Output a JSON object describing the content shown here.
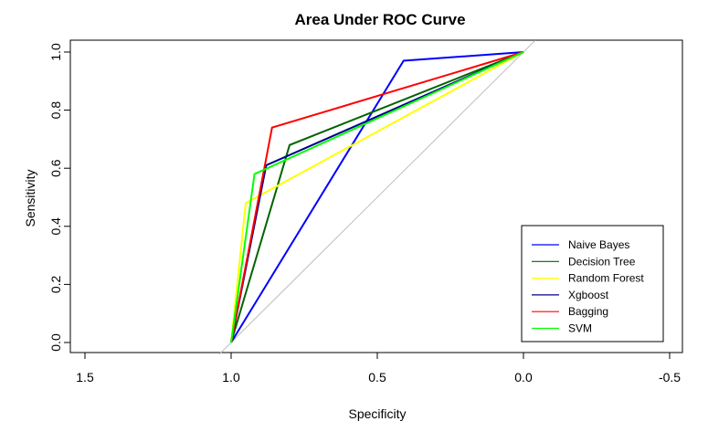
{
  "chart_data": {
    "type": "line",
    "title": "Area Under ROC Curve",
    "xlabel": "Specificity",
    "ylabel": "Sensitivity",
    "xlim": [
      1.5,
      -0.5
    ],
    "ylim": [
      0.0,
      1.0
    ],
    "x_reversed": true,
    "x_ticks": [
      1.5,
      1.0,
      0.5,
      0.0,
      -0.5
    ],
    "x_tick_labels": [
      "1.5",
      "1.0",
      "0.5",
      "0.0",
      "-0.5"
    ],
    "y_ticks": [
      0.0,
      0.2,
      0.4,
      0.6,
      0.8,
      1.0
    ],
    "y_tick_labels": [
      "0.0",
      "0.2",
      "0.4",
      "0.6",
      "0.8",
      "1.0"
    ],
    "grid": false,
    "legend_position": "bottom-right",
    "reference_line": {
      "x": [
        1.0,
        0.0
      ],
      "y": [
        0.0,
        1.0
      ],
      "color": "#bebebe"
    },
    "series": [
      {
        "name": "Naive Bayes",
        "color": "#0000ff",
        "x": [
          1.0,
          0.41,
          0.0
        ],
        "y": [
          0.0,
          0.97,
          1.0
        ]
      },
      {
        "name": "Decision Tree",
        "color": "#006400",
        "x": [
          1.0,
          0.8,
          0.0
        ],
        "y": [
          0.0,
          0.68,
          1.0
        ]
      },
      {
        "name": "Random Forest",
        "color": "#ffff00",
        "x": [
          1.0,
          0.95,
          0.0
        ],
        "y": [
          0.0,
          0.48,
          1.0
        ]
      },
      {
        "name": "Xgboost",
        "color": "#00008b",
        "x": [
          1.0,
          0.88,
          0.0
        ],
        "y": [
          0.0,
          0.61,
          1.0
        ]
      },
      {
        "name": "Bagging",
        "color": "#ff0000",
        "x": [
          1.0,
          0.86,
          0.0
        ],
        "y": [
          0.0,
          0.74,
          1.0
        ]
      },
      {
        "name": "SVM",
        "color": "#00ff00",
        "x": [
          1.0,
          0.92,
          0.0
        ],
        "y": [
          0.0,
          0.58,
          1.0
        ]
      }
    ]
  }
}
